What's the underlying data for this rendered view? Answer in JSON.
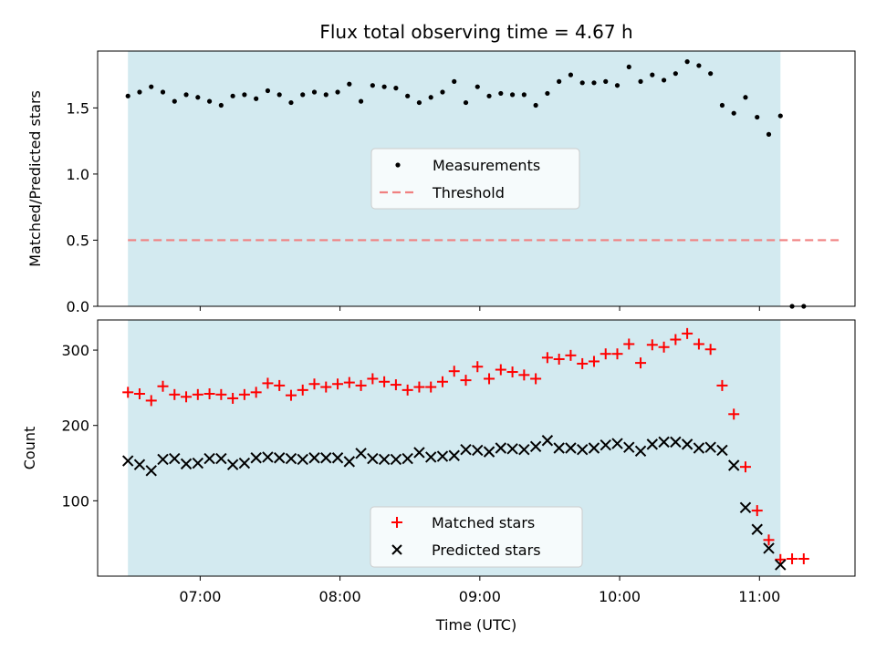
{
  "chart_data": [
    {
      "type": "scatter",
      "title": "Flux total observing time = 4.67 h",
      "xlabel": "",
      "ylabel": "Matched/Predicted stars",
      "ylim": [
        0,
        1.93
      ],
      "yticks": [
        0.0,
        0.5,
        1.0,
        1.5
      ],
      "ytick_labels": [
        "0.0",
        "0.5",
        "1.0",
        "1.5"
      ],
      "shaded_span": [
        "06:29",
        "11:09"
      ],
      "threshold": {
        "name": "Threshold",
        "value": 0.5,
        "x_range": [
          "06:29",
          "11:34"
        ],
        "color": "#f08080"
      },
      "legend": {
        "position": "center",
        "entries": [
          "Measurements",
          "Threshold"
        ]
      },
      "series": [
        {
          "name": "Measurements",
          "marker": "dot",
          "color": "#000000",
          "x": [
            "06:29",
            "06:34",
            "06:39",
            "06:44",
            "06:49",
            "06:54",
            "06:59",
            "07:04",
            "07:09",
            "07:14",
            "07:19",
            "07:24",
            "07:29",
            "07:34",
            "07:39",
            "07:44",
            "07:49",
            "07:54",
            "07:59",
            "08:04",
            "08:09",
            "08:14",
            "08:19",
            "08:24",
            "08:29",
            "08:34",
            "08:39",
            "08:44",
            "08:49",
            "08:54",
            "08:59",
            "09:04",
            "09:09",
            "09:14",
            "09:19",
            "09:24",
            "09:29",
            "09:34",
            "09:39",
            "09:44",
            "09:49",
            "09:54",
            "09:59",
            "10:04",
            "10:09",
            "10:14",
            "10:19",
            "10:24",
            "10:29",
            "10:34",
            "10:39",
            "10:44",
            "10:49",
            "10:54",
            "10:59",
            "11:04",
            "11:09",
            "11:14",
            "11:19"
          ],
          "y": [
            1.59,
            1.62,
            1.66,
            1.62,
            1.55,
            1.6,
            1.58,
            1.55,
            1.52,
            1.59,
            1.6,
            1.57,
            1.63,
            1.6,
            1.54,
            1.6,
            1.62,
            1.6,
            1.62,
            1.68,
            1.55,
            1.67,
            1.66,
            1.65,
            1.59,
            1.54,
            1.58,
            1.62,
            1.7,
            1.54,
            1.66,
            1.59,
            1.61,
            1.6,
            1.6,
            1.52,
            1.61,
            1.7,
            1.75,
            1.69,
            1.69,
            1.7,
            1.67,
            1.81,
            1.7,
            1.75,
            1.71,
            1.76,
            1.85,
            1.82,
            1.76,
            1.52,
            1.46,
            1.58,
            1.43,
            1.3,
            1.44,
            0.0,
            0.0
          ]
        }
      ]
    },
    {
      "type": "scatter",
      "title": "",
      "xlabel": "Time (UTC)",
      "ylabel": "Count",
      "ylim": [
        0,
        340
      ],
      "yticks": [
        100,
        200,
        300
      ],
      "ytick_labels": [
        "100",
        "200",
        "300"
      ],
      "xticks": [
        "07:00",
        "08:00",
        "09:00",
        "10:00",
        "11:00"
      ],
      "xlim": [
        "06:16",
        "11:41"
      ],
      "shaded_span": [
        "06:29",
        "11:09"
      ],
      "legend": {
        "position": "bottom-center",
        "entries": [
          "Matched stars",
          "Predicted stars"
        ]
      },
      "series": [
        {
          "name": "Matched stars",
          "marker": "plus",
          "color": "#ff0000",
          "x": [
            "06:29",
            "06:34",
            "06:39",
            "06:44",
            "06:49",
            "06:54",
            "06:59",
            "07:04",
            "07:09",
            "07:14",
            "07:19",
            "07:24",
            "07:29",
            "07:34",
            "07:39",
            "07:44",
            "07:49",
            "07:54",
            "07:59",
            "08:04",
            "08:09",
            "08:14",
            "08:19",
            "08:24",
            "08:29",
            "08:34",
            "08:39",
            "08:44",
            "08:49",
            "08:54",
            "08:59",
            "09:04",
            "09:09",
            "09:14",
            "09:19",
            "09:24",
            "09:29",
            "09:34",
            "09:39",
            "09:44",
            "09:49",
            "09:54",
            "09:59",
            "10:04",
            "10:09",
            "10:14",
            "10:19",
            "10:24",
            "10:29",
            "10:34",
            "10:39",
            "10:44",
            "10:49",
            "10:54",
            "10:59",
            "11:04",
            "11:09",
            "11:14",
            "11:19"
          ],
          "y": [
            244,
            242,
            233,
            252,
            241,
            238,
            241,
            242,
            241,
            236,
            241,
            244,
            256,
            253,
            240,
            247,
            255,
            251,
            255,
            257,
            253,
            262,
            258,
            254,
            247,
            251,
            251,
            258,
            272,
            260,
            278,
            262,
            274,
            271,
            267,
            262,
            290,
            288,
            293,
            282,
            285,
            295,
            295,
            308,
            283,
            307,
            304,
            314,
            322,
            308,
            301,
            253,
            215,
            145,
            87,
            48,
            22,
            23,
            23
          ]
        },
        {
          "name": "Predicted stars",
          "marker": "x",
          "color": "#000000",
          "x": [
            "06:29",
            "06:34",
            "06:39",
            "06:44",
            "06:49",
            "06:54",
            "06:59",
            "07:04",
            "07:09",
            "07:14",
            "07:19",
            "07:24",
            "07:29",
            "07:34",
            "07:39",
            "07:44",
            "07:49",
            "07:54",
            "07:59",
            "08:04",
            "08:09",
            "08:14",
            "08:19",
            "08:24",
            "08:29",
            "08:34",
            "08:39",
            "08:44",
            "08:49",
            "08:54",
            "08:59",
            "09:04",
            "09:09",
            "09:14",
            "09:19",
            "09:24",
            "09:29",
            "09:34",
            "09:39",
            "09:44",
            "09:49",
            "09:54",
            "09:59",
            "10:04",
            "10:09",
            "10:14",
            "10:19",
            "10:24",
            "10:29",
            "10:34",
            "10:39",
            "10:44",
            "10:49",
            "10:54",
            "10:59",
            "11:04",
            "11:09"
          ],
          "y": [
            153,
            148,
            140,
            155,
            156,
            149,
            150,
            156,
            156,
            148,
            150,
            157,
            158,
            157,
            156,
            155,
            157,
            157,
            157,
            152,
            163,
            156,
            155,
            155,
            156,
            164,
            158,
            159,
            160,
            168,
            167,
            165,
            170,
            169,
            168,
            172,
            180,
            170,
            170,
            168,
            170,
            174,
            176,
            171,
            166,
            175,
            178,
            178,
            175,
            170,
            171,
            167,
            147,
            91,
            62,
            37,
            15
          ]
        }
      ]
    }
  ]
}
